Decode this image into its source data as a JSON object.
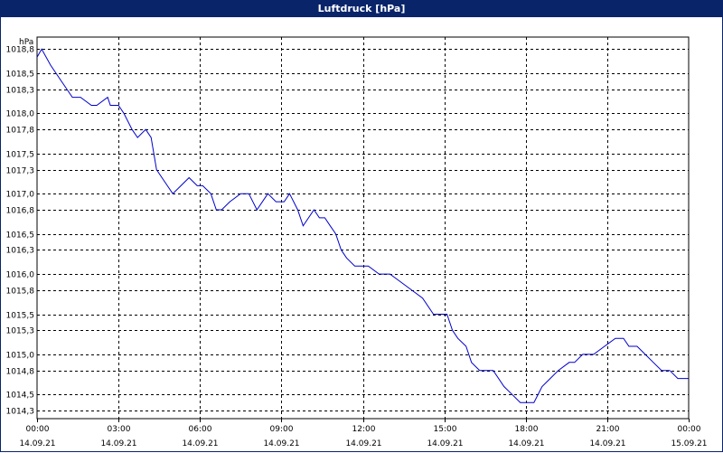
{
  "window": {
    "title": "Luftdruck [hPa]"
  },
  "chart_data": {
    "type": "line",
    "title": "Luftdruck [hPa]",
    "ylabel": "hPa",
    "xlabel": "",
    "ylim": [
      1014.2,
      1018.95
    ],
    "xlim": [
      0,
      24
    ],
    "grid": true,
    "y_ticks": [
      "1014,3",
      "1014,5",
      "1014,8",
      "1015,0",
      "1015,3",
      "1015,5",
      "1015,8",
      "1016,0",
      "1016,3",
      "1016,5",
      "1016,8",
      "1017,0",
      "1017,3",
      "1017,5",
      "1017,8",
      "1018,0",
      "1018,3",
      "1018,5",
      "1018,8"
    ],
    "y_tick_values": [
      1014.3,
      1014.5,
      1014.8,
      1015.0,
      1015.3,
      1015.5,
      1015.8,
      1016.0,
      1016.3,
      1016.5,
      1016.8,
      1017.0,
      1017.3,
      1017.5,
      1017.8,
      1018.0,
      1018.3,
      1018.5,
      1018.8
    ],
    "x_ticks": [
      {
        "time": "00:00",
        "date": "14.09.21"
      },
      {
        "time": "03:00",
        "date": "14.09.21"
      },
      {
        "time": "06:00",
        "date": "14.09.21"
      },
      {
        "time": "09:00",
        "date": "14.09.21"
      },
      {
        "time": "12:00",
        "date": "14.09.21"
      },
      {
        "time": "15:00",
        "date": "14.09.21"
      },
      {
        "time": "18:00",
        "date": "14.09.21"
      },
      {
        "time": "21:00",
        "date": "14.09.21"
      },
      {
        "time": "00:00",
        "date": "15.09.21"
      }
    ],
    "x_tick_values": [
      0,
      3,
      6,
      9,
      12,
      15,
      18,
      21,
      24
    ],
    "series": [
      {
        "color": "#0000cc",
        "x": [
          0.0,
          0.17,
          0.5,
          0.9,
          1.3,
          1.6,
          2.0,
          2.2,
          2.6,
          2.7,
          3.0,
          3.2,
          3.5,
          3.7,
          4.0,
          4.2,
          4.4,
          4.6,
          4.8,
          5.0,
          5.3,
          5.6,
          5.9,
          6.1,
          6.4,
          6.6,
          6.8,
          7.1,
          7.5,
          7.8,
          8.1,
          8.5,
          8.8,
          9.1,
          9.3,
          9.6,
          9.8,
          10.2,
          10.4,
          10.6,
          10.8,
          11.0,
          11.2,
          11.4,
          11.7,
          11.9,
          12.0,
          12.2,
          12.6,
          13.0,
          13.4,
          13.8,
          14.2,
          14.6,
          14.9,
          15.1,
          15.3,
          15.5,
          15.8,
          16.0,
          16.3,
          16.5,
          16.8,
          17.2,
          17.5,
          17.8,
          18.0,
          18.3,
          18.6,
          18.9,
          19.2,
          19.6,
          19.8,
          20.1,
          20.5,
          20.9,
          21.3,
          21.6,
          21.8,
          22.1,
          22.4,
          22.7,
          23.0,
          23.3,
          23.6,
          24.0
        ],
        "y": [
          1018.7,
          1018.8,
          1018.6,
          1018.4,
          1018.2,
          1018.2,
          1018.1,
          1018.1,
          1018.2,
          1018.1,
          1018.1,
          1018.0,
          1017.8,
          1017.7,
          1017.8,
          1017.7,
          1017.3,
          1017.2,
          1017.1,
          1017.0,
          1017.1,
          1017.2,
          1017.1,
          1017.1,
          1017.0,
          1016.8,
          1016.8,
          1016.9,
          1017.0,
          1017.0,
          1016.8,
          1017.0,
          1016.9,
          1016.9,
          1017.0,
          1016.8,
          1016.6,
          1016.8,
          1016.7,
          1016.7,
          1016.6,
          1016.5,
          1016.3,
          1016.2,
          1016.1,
          1016.1,
          1016.1,
          1016.1,
          1016.0,
          1016.0,
          1015.9,
          1015.8,
          1015.7,
          1015.5,
          1015.5,
          1015.5,
          1015.3,
          1015.2,
          1015.1,
          1014.9,
          1014.8,
          1014.8,
          1014.8,
          1014.6,
          1014.5,
          1014.4,
          1014.4,
          1014.4,
          1014.6,
          1014.7,
          1014.8,
          1014.9,
          1014.9,
          1015.0,
          1015.0,
          1015.1,
          1015.2,
          1015.2,
          1015.1,
          1015.1,
          1015.0,
          1014.9,
          1014.8,
          1014.8,
          1014.7,
          1014.7
        ]
      }
    ]
  }
}
